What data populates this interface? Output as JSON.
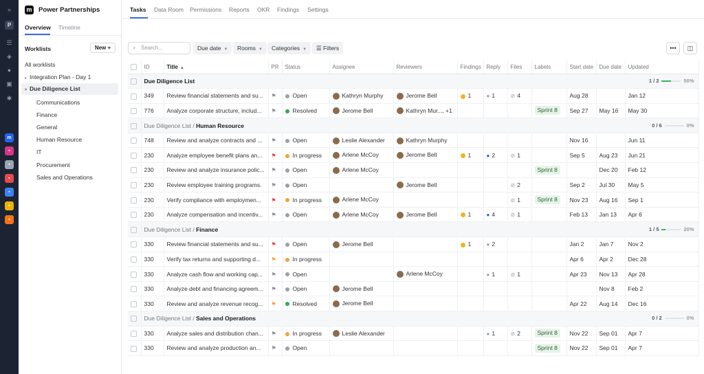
{
  "rail": {
    "initial": "P"
  },
  "brand": {
    "logo": "m",
    "name": "Power Partnerships"
  },
  "nav": {
    "tabs": [
      "Tasks",
      "Data Room",
      "Permissions",
      "Reports",
      "OKR",
      "Findings",
      "Settings"
    ],
    "active": "Tasks"
  },
  "subtabs": {
    "items": [
      "Overview",
      "Timeline"
    ],
    "active": "Overview"
  },
  "sidebar": {
    "title": "Worklists",
    "new_label": "New",
    "all": "All worklists",
    "items": [
      "Integration Plan - Day 1",
      "Due Diligence List"
    ],
    "sub": [
      "Communications",
      "Finance",
      "General",
      "Human Resource",
      "IT",
      "Procurement",
      "Sales and Operations"
    ]
  },
  "toolbar": {
    "search_placeholder": "Search...",
    "due_date": "Due date",
    "rooms": "Rooms",
    "categories": "Categories",
    "filters": "Filters",
    "more": "•••"
  },
  "columns": [
    "ID",
    "Title",
    "PR",
    "Status",
    "Assignee",
    "Reviewers",
    "Findings",
    "Reply",
    "Files",
    "Labels",
    "Start date",
    "Due date",
    "Updated"
  ],
  "colors": {
    "accent": "#3b6bd6",
    "open": "#9aa0a8",
    "resolved": "#2fa84f",
    "in_progress": "#f2a23a",
    "flag_red": "#e5484d",
    "flag_orange": "#f2a23a",
    "flag_gray": "#8a8f98"
  },
  "groups": [
    {
      "prefix": "",
      "name": "Due Diligence List",
      "progress": "1 / 2",
      "pct": "50%",
      "fill": 0.5,
      "rows": [
        {
          "id": "349",
          "title": "Review financial statements and su...",
          "pr": "gray",
          "status": "Open",
          "st": "open",
          "assignee": "Kathryn Murphy",
          "reviewers": "Jerome Bell",
          "findings": "1",
          "reply": "1",
          "rc": "gray",
          "files": "4",
          "label": "",
          "start": "Aug 28",
          "due": "",
          "updated": "Jan 12"
        },
        {
          "id": "776",
          "title": "Analyze corporate structure, includ...",
          "pr": "gray",
          "status": "Resolved",
          "st": "resolved",
          "assignee": "Jerome Bell",
          "reviewers": "Kathryn Mur..., +1",
          "findings": "",
          "reply": "",
          "rc": "",
          "files": "",
          "label": "Sprint 8",
          "start": "Sep 27",
          "due": "May 16",
          "updated": "May 30"
        }
      ]
    },
    {
      "prefix": "Due Diligence List / ",
      "name": "Human Resource",
      "progress": "0 / 6",
      "pct": "0%",
      "fill": 0,
      "rows": [
        {
          "id": "748",
          "title": "Review and analyze contracts and ...",
          "pr": "gray",
          "status": "Open",
          "st": "open",
          "assignee": "Leslie Alexander",
          "reviewers": "Kathryn Murphy",
          "findings": "",
          "reply": "",
          "rc": "",
          "files": "",
          "label": "",
          "start": "Nov 16",
          "due": "",
          "updated": "Jun 11"
        },
        {
          "id": "230",
          "title": "Analyze employee benefit plans an...",
          "pr": "red",
          "status": "In progress",
          "st": "in_progress",
          "assignee": "Arlene McCoy",
          "reviewers": "Jerome Bell",
          "findings": "1",
          "reply": "2",
          "rc": "blue",
          "files": "1",
          "label": "",
          "start": "Sep 5",
          "due": "Aug 23",
          "updated": "Jun 21"
        },
        {
          "id": "230",
          "title": "Review and analyze insurance polic...",
          "pr": "gray",
          "status": "Open",
          "st": "open",
          "assignee": "Arlene McCoy",
          "reviewers": "",
          "findings": "",
          "reply": "",
          "rc": "",
          "files": "",
          "label": "Sprint 8",
          "start": "",
          "due": "Dec 20",
          "updated": "Feb 12"
        },
        {
          "id": "230",
          "title": "Review employee training programs.",
          "pr": "gray",
          "status": "Open",
          "st": "open",
          "assignee": "",
          "reviewers": "Jerome Bell",
          "findings": "",
          "reply": "",
          "rc": "",
          "files": "2",
          "label": "",
          "start": "Sep 2",
          "due": "Jul 30",
          "updated": "May 5"
        },
        {
          "id": "230",
          "title": "Verify compliance with employmen...",
          "pr": "red",
          "status": "In progress",
          "st": "in_progress",
          "assignee": "Arlene McCoy",
          "reviewers": "",
          "findings": "",
          "reply": "",
          "rc": "",
          "files": "1",
          "label": "Sprint 8",
          "start": "Nov 23",
          "due": "Aug 16",
          "updated": "Sep 1"
        },
        {
          "id": "230",
          "title": "Analyze compensation and incentiv...",
          "pr": "gray",
          "status": "Open",
          "st": "open",
          "assignee": "Arlene McCoy",
          "reviewers": "Jerome Bell",
          "findings": "1",
          "reply": "4",
          "rc": "blue",
          "files": "1",
          "label": "",
          "start": "Feb 13",
          "due": "Jan 13",
          "updated": "Apr 6"
        }
      ]
    },
    {
      "prefix": "Due Diligence List / ",
      "name": "Finance",
      "progress": "1 / 5",
      "pct": "20%",
      "fill": 0.2,
      "rows": [
        {
          "id": "330",
          "title": "Review financial statements and su...",
          "pr": "red",
          "status": "Open",
          "st": "open",
          "assignee": "Jerome Bell",
          "reviewers": "",
          "findings": "1",
          "reply": "2",
          "rc": "gray",
          "files": "",
          "label": "",
          "start": "Jan 2",
          "due": "Jan 7",
          "updated": "Nov 2"
        },
        {
          "id": "330",
          "title": "Verify tax returns and supporting d...",
          "pr": "orange",
          "status": "In progress",
          "st": "in_progress",
          "assignee": "",
          "reviewers": "",
          "findings": "",
          "reply": "",
          "rc": "",
          "files": "",
          "label": "",
          "start": "Apr 6",
          "due": "Apr 2",
          "updated": "Dec 28"
        },
        {
          "id": "330",
          "title": "Analyze cash flow and working cap...",
          "pr": "gray",
          "status": "Open",
          "st": "open",
          "assignee": "",
          "reviewers": "Arlene McCoy",
          "findings": "",
          "reply": "1",
          "rc": "gray",
          "files": "1",
          "label": "",
          "start": "Apr 23",
          "due": "Nov 13",
          "updated": "Apr 28"
        },
        {
          "id": "330",
          "title": "Analyze debt and financing agreem...",
          "pr": "gray",
          "status": "Open",
          "st": "open",
          "assignee": "Jerome Bell",
          "reviewers": "",
          "findings": "",
          "reply": "",
          "rc": "",
          "files": "",
          "label": "",
          "start": "",
          "due": "Nov 8",
          "updated": "Feb 2"
        },
        {
          "id": "330",
          "title": "Review and analyze revenue recog...",
          "pr": "orange",
          "status": "Resolved",
          "st": "resolved",
          "assignee": "Jerome Bell",
          "reviewers": "",
          "findings": "",
          "reply": "",
          "rc": "",
          "files": "",
          "label": "",
          "start": "Apr 22",
          "due": "Aug 14",
          "updated": "Dec 16"
        }
      ]
    },
    {
      "prefix": "Due Diligence List / ",
      "name": "Sales and Operations",
      "progress": "0 / 2",
      "pct": "0%",
      "fill": 0,
      "rows": [
        {
          "id": "330",
          "title": "Analyze sales and distribution chan...",
          "pr": "gray",
          "status": "In progress",
          "st": "in_progress",
          "assignee": "Leslie Alexander",
          "reviewers": "",
          "findings": "",
          "reply": "1",
          "rc": "gray",
          "files": "2",
          "label": "Sprint 8",
          "start": "Nov 22",
          "due": "Sep 01",
          "updated": "Apr 7"
        },
        {
          "id": "330",
          "title": "Review and analyze production an...",
          "pr": "gray",
          "status": "Open",
          "st": "open",
          "assignee": "",
          "reviewers": "",
          "findings": "",
          "reply": "",
          "rc": "",
          "files": "",
          "label": "Sprint 8",
          "start": "Nov 22",
          "due": "Sep 01",
          "updated": "Apr 7"
        }
      ]
    }
  ]
}
